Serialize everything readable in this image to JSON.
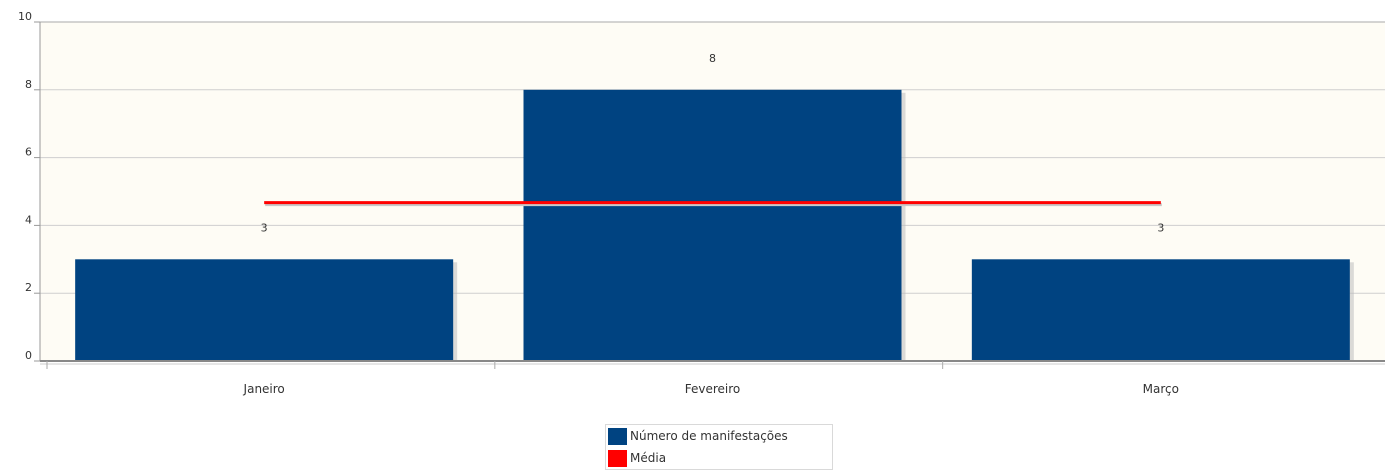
{
  "chart_data": {
    "type": "bar",
    "title": "",
    "xlabel": "",
    "ylabel": "",
    "categories": [
      "Janeiro",
      "Fevereiro",
      "Março"
    ],
    "ylim": [
      0,
      10
    ],
    "yticks": [
      "0",
      "2",
      "4",
      "6",
      "8",
      "10"
    ],
    "grid": true,
    "legend_position": "bottom-center",
    "series": [
      {
        "name": "Número de manifestações",
        "type": "bar",
        "values": [
          3,
          8,
          3
        ],
        "data_labels": [
          "3",
          "8",
          "3"
        ],
        "color": "#004381"
      },
      {
        "name": "Média",
        "type": "line",
        "values": [
          4.67,
          4.67,
          4.67
        ],
        "color": "#ff0000"
      }
    ],
    "plot_background": "#fefcf5"
  },
  "legend": {
    "items": [
      {
        "label": "Número de manifestações",
        "color": "#004381"
      },
      {
        "label": "Média",
        "color": "#ff0000"
      }
    ]
  }
}
